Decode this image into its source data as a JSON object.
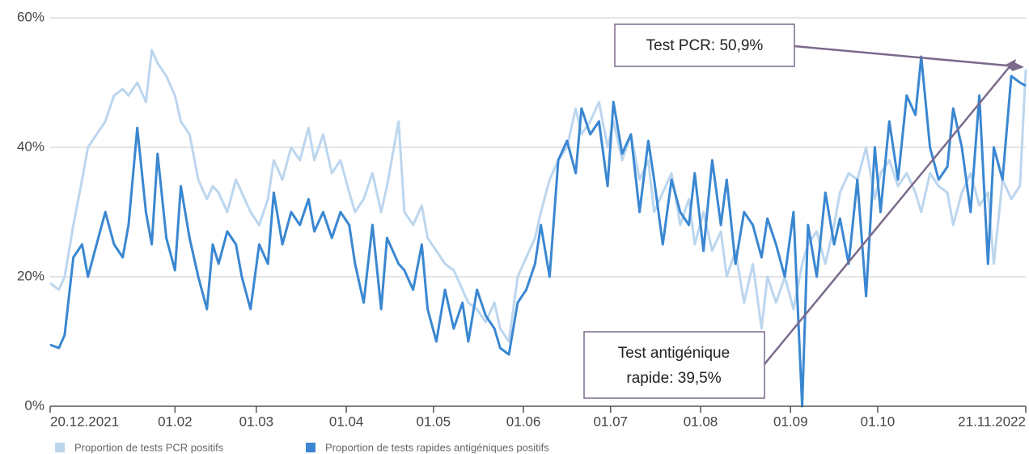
{
  "chart_data": {
    "type": "line",
    "x": [
      0,
      3,
      5,
      8,
      11,
      13,
      16,
      19,
      22,
      25,
      27,
      30,
      33,
      35,
      37,
      40,
      43,
      45,
      48,
      51,
      54,
      56,
      58,
      61,
      64,
      66,
      69,
      72,
      75,
      77,
      80,
      83,
      86,
      89,
      91,
      94,
      97,
      100,
      103,
      105,
      108,
      111,
      114,
      116,
      120,
      122,
      125,
      128,
      130,
      133,
      136,
      139,
      142,
      144,
      147,
      150,
      153,
      155,
      158,
      161,
      164,
      167,
      169,
      172,
      175,
      178,
      181,
      183,
      186,
      189,
      192,
      194,
      197,
      200,
      203,
      206,
      208,
      211,
      214,
      217,
      220,
      222,
      225,
      228,
      231,
      233,
      236,
      239,
      242,
      245,
      247,
      250,
      253,
      256,
      259,
      261,
      264,
      267,
      270,
      272,
      275,
      278,
      281,
      284,
      286,
      289,
      292,
      295,
      298,
      300,
      303,
      306,
      309,
      311,
      314,
      317,
      320,
      323,
      325,
      328,
      331,
      334,
      336
    ],
    "xlim": [
      0,
      336
    ],
    "xticks": [
      {
        "value": 0,
        "label": "20.12.2021"
      },
      {
        "value": 43,
        "label": "01.02"
      },
      {
        "value": 71,
        "label": "01.03"
      },
      {
        "value": 102,
        "label": "01.04"
      },
      {
        "value": 132,
        "label": "01.05"
      },
      {
        "value": 163,
        "label": "01.06"
      },
      {
        "value": 193,
        "label": "01.07"
      },
      {
        "value": 224,
        "label": "01.08"
      },
      {
        "value": 255,
        "label": "01.09"
      },
      {
        "value": 285,
        "label": "01.10"
      },
      {
        "value": 336,
        "label": "21.11.2022"
      }
    ],
    "ylim": [
      0,
      60
    ],
    "yticks": [
      {
        "value": 0,
        "label": "0%"
      },
      {
        "value": 20,
        "label": "20%"
      },
      {
        "value": 40,
        "label": "40%"
      },
      {
        "value": 60,
        "label": "60%"
      }
    ],
    "grid": true,
    "legend": "bottom",
    "series": [
      {
        "name": "Proportion de tests PCR positifs",
        "color": "#bcd6ee",
        "values": [
          19,
          18,
          20,
          28,
          35,
          40,
          42,
          44,
          48,
          49,
          48,
          50,
          47,
          55,
          53,
          51,
          48,
          44,
          42,
          35,
          32,
          34,
          33,
          30,
          35,
          33,
          30,
          28,
          32,
          38,
          35,
          40,
          38,
          43,
          38,
          42,
          36,
          38,
          33,
          30,
          32,
          36,
          30,
          34,
          44,
          30,
          28,
          31,
          26,
          24,
          22,
          21,
          18,
          16,
          15,
          13,
          16,
          12,
          10,
          20,
          23,
          26,
          30,
          35,
          38,
          40,
          46,
          42,
          44,
          47,
          40,
          44,
          38,
          42,
          35,
          38,
          30,
          33,
          36,
          28,
          32,
          25,
          30,
          24,
          27,
          20,
          24,
          16,
          22,
          12,
          20,
          16,
          20,
          15,
          22,
          25,
          27,
          22,
          28,
          33,
          36,
          35,
          40,
          32,
          36,
          38,
          34,
          36,
          33,
          30,
          36,
          34,
          33,
          28,
          33,
          36,
          31,
          33,
          22,
          35,
          32,
          34,
          52
        ]
      },
      {
        "name": "Proportion de tests rapides antigéniques positifs",
        "color": "#3a87d1",
        "values": [
          9.5,
          9,
          11,
          23,
          25,
          20,
          25,
          30,
          25,
          23,
          28,
          43,
          30,
          25,
          39,
          26,
          21,
          34,
          26,
          20,
          15,
          25,
          22,
          27,
          25,
          20,
          15,
          25,
          22,
          33,
          25,
          30,
          28,
          32,
          27,
          30,
          26,
          30,
          28,
          22,
          16,
          28,
          15,
          26,
          22,
          21,
          18,
          25,
          15,
          10,
          18,
          12,
          16,
          10,
          18,
          14,
          12,
          9,
          8,
          16,
          18,
          22,
          28,
          20,
          38,
          41,
          36,
          46,
          42,
          44,
          34,
          47,
          39,
          42,
          30,
          41,
          35,
          25,
          35,
          30,
          28,
          36,
          24,
          38,
          28,
          35,
          22,
          30,
          28,
          23,
          29,
          25,
          20,
          30,
          0,
          28,
          20,
          33,
          25,
          29,
          22,
          35,
          17,
          40,
          30,
          44,
          35,
          48,
          45,
          54,
          40,
          35,
          37,
          46,
          40,
          30,
          48,
          22,
          40,
          35,
          51,
          50,
          49.5
        ]
      }
    ],
    "annotations": [
      {
        "lines": [
          "Test PCR: 50,9%"
        ]
      },
      {
        "lines": [
          "Test antigénique",
          "rapide: 39,5%"
        ]
      }
    ]
  }
}
